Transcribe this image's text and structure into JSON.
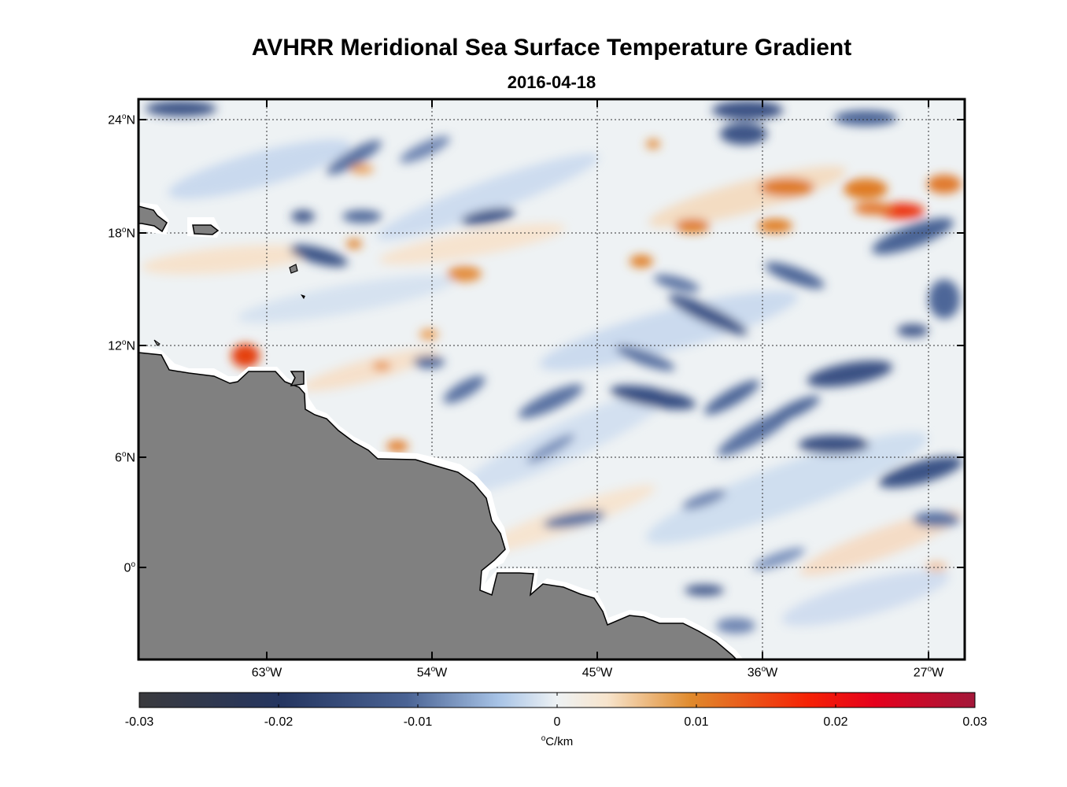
{
  "title": "AVHRR Meridional Sea Surface Temperature Gradient",
  "subtitle": "2016-04-18",
  "lat_labels": [
    {
      "deg": "24",
      "hemi": "N"
    },
    {
      "deg": "18",
      "hemi": "N"
    },
    {
      "deg": "12",
      "hemi": "N"
    },
    {
      "deg": "6",
      "hemi": "N"
    },
    {
      "deg": "0",
      "hemi": ""
    }
  ],
  "lon_labels": [
    {
      "deg": "63",
      "hemi": "W"
    },
    {
      "deg": "54",
      "hemi": "W"
    },
    {
      "deg": "45",
      "hemi": "W"
    },
    {
      "deg": "36",
      "hemi": "W"
    },
    {
      "deg": "27",
      "hemi": "W"
    }
  ],
  "colorbar": {
    "ticks": [
      "-0.03",
      "-0.02",
      "-0.01",
      "0",
      "0.01",
      "0.02",
      "0.03"
    ],
    "unit_deg": "o",
    "unit": "C/km",
    "colors": [
      "#3a3a3d",
      "#243560",
      "#4a6394",
      "#a7c3e6",
      "#eef2f4",
      "#f7e4cc",
      "#e08a2c",
      "#f52205",
      "#e5001c",
      "#a3183a"
    ]
  },
  "colors": {
    "land": "#808080",
    "coast_buffer": "#ffffff",
    "ocean_bg": "#eef2f4"
  }
}
